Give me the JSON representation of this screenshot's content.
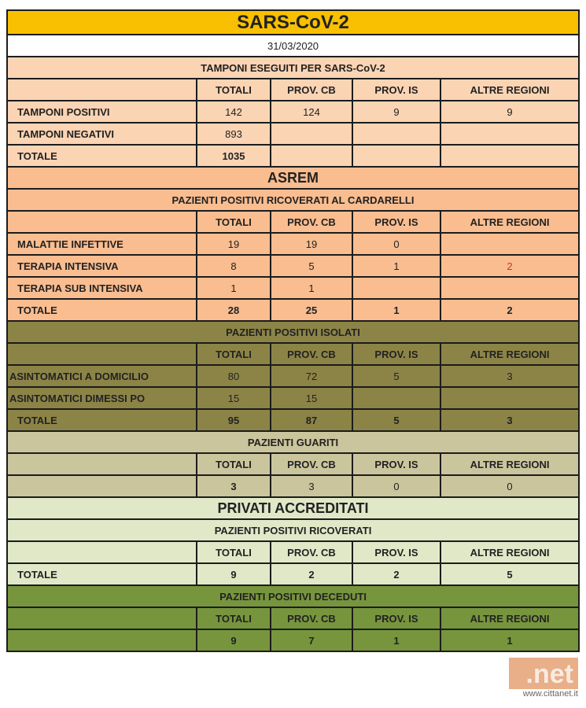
{
  "colors": {
    "yellow": "#f8c000",
    "peach": "#fbd4b4",
    "orange": "#f9bd90",
    "olive": "#8c8446",
    "khaki": "#cac59c",
    "lgreen": "#e0e8c8",
    "green": "#77953d",
    "highlight_red": "#c0392b"
  },
  "columns": [
    "TOTALI",
    "PROV. CB",
    "PROV. IS",
    "ALTRE REGIONI"
  ],
  "rows": [
    {
      "type": "title",
      "theme": "yellow",
      "text": "SARS-CoV-2"
    },
    {
      "type": "section",
      "theme": "white",
      "text": "31/03/2020",
      "plain": true
    },
    {
      "type": "section",
      "theme": "peach",
      "text": "TAMPONI ESEGUITI PER SARS-CoV-2"
    },
    {
      "type": "hdr",
      "theme": "peach"
    },
    {
      "type": "data",
      "theme": "peach",
      "label": "TAMPONI POSITIVI",
      "values": [
        "142",
        "124",
        "9",
        "9"
      ]
    },
    {
      "type": "data",
      "theme": "peach",
      "label": "TAMPONI NEGATIVI",
      "values": [
        "893",
        "",
        "",
        ""
      ]
    },
    {
      "type": "data",
      "theme": "peach",
      "label": "TOTALE",
      "values": [
        "1035",
        "",
        "",
        ""
      ],
      "boldValues": true
    },
    {
      "type": "big",
      "theme": "orange",
      "text": "ASREM"
    },
    {
      "type": "section",
      "theme": "orange",
      "text": "PAZIENTI POSITIVI RICOVERATI AL CARDARELLI"
    },
    {
      "type": "hdr",
      "theme": "orange"
    },
    {
      "type": "data",
      "theme": "orange",
      "label": "MALATTIE INFETTIVE",
      "values": [
        "19",
        "19",
        "0",
        ""
      ]
    },
    {
      "type": "data",
      "theme": "orange",
      "label": "TERAPIA INTENSIVA",
      "values": [
        "8",
        "5",
        "1",
        "2"
      ],
      "redIndex": 3
    },
    {
      "type": "data",
      "theme": "orange",
      "label": "TERAPIA SUB INTENSIVA",
      "values": [
        "1",
        "1",
        "",
        ""
      ]
    },
    {
      "type": "data",
      "theme": "orange",
      "label": "TOTALE",
      "values": [
        "28",
        "25",
        "1",
        "2"
      ],
      "boldValues": true
    },
    {
      "type": "section",
      "theme": "olive",
      "text": "PAZIENTI POSITIVI ISOLATI"
    },
    {
      "type": "hdr",
      "theme": "olive"
    },
    {
      "type": "data",
      "theme": "olive",
      "label": "ASINTOMATICI A DOMICILIO",
      "values": [
        "80",
        "72",
        "5",
        "3"
      ],
      "tight": true
    },
    {
      "type": "data",
      "theme": "olive",
      "label": "ASINTOMATICI DIMESSI PO",
      "values": [
        "15",
        "15",
        "",
        ""
      ],
      "tight": true
    },
    {
      "type": "data",
      "theme": "olive",
      "label": "TOTALE",
      "values": [
        "95",
        "87",
        "5",
        "3"
      ],
      "boldValues": true
    },
    {
      "type": "section",
      "theme": "khaki",
      "text": "PAZIENTI GUARITI"
    },
    {
      "type": "hdr",
      "theme": "khaki"
    },
    {
      "type": "data",
      "theme": "khaki",
      "label": "",
      "values": [
        "3",
        "3",
        "0",
        "0"
      ],
      "boldIndex": 0
    },
    {
      "type": "big",
      "theme": "lgreen",
      "text": "PRIVATI ACCREDITATI"
    },
    {
      "type": "section",
      "theme": "lgreen",
      "text": "PAZIENTI POSITIVI RICOVERATI"
    },
    {
      "type": "hdr",
      "theme": "lgreen"
    },
    {
      "type": "data",
      "theme": "lgreen",
      "label": "TOTALE",
      "values": [
        "9",
        "2",
        "2",
        "5"
      ],
      "boldValues": true
    },
    {
      "type": "section",
      "theme": "green",
      "text": "PAZIENTI POSITIVI DECEDUTI"
    },
    {
      "type": "hdr",
      "theme": "green"
    },
    {
      "type": "data",
      "theme": "green",
      "label": "",
      "values": [
        "9",
        "7",
        "1",
        "1"
      ],
      "boldValues": true
    }
  ],
  "watermark": {
    "logo": ".net",
    "url": "www.cittanet.it"
  }
}
